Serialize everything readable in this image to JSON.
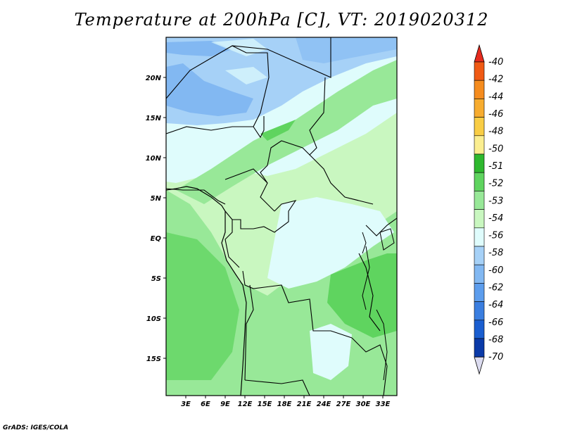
{
  "title": "Temperature at 200hPa [C], VT: 2019020312",
  "credit": "GrADS: IGES/COLA",
  "map": {
    "lat_labels": [
      "20N",
      "15N",
      "10N",
      "5N",
      "EQ",
      "5S",
      "10S",
      "15S"
    ],
    "lon_labels": [
      "3E",
      "6E",
      "9E",
      "12E",
      "15E",
      "18E",
      "21E",
      "24E",
      "27E",
      "30E",
      "33E"
    ]
  },
  "colorbar": {
    "labels": [
      "-40",
      "-42",
      "-44",
      "-46",
      "-48",
      "-50",
      "-51",
      "-52",
      "-53",
      "-54",
      "-56",
      "-58",
      "-60",
      "-62",
      "-64",
      "-66",
      "-68",
      "-70"
    ],
    "colors": [
      "#e62b1e",
      "#f05a14",
      "#f58c1e",
      "#f7ac2f",
      "#f9cd45",
      "#fbee90",
      "#2eb82e",
      "#5fd45f",
      "#98e898",
      "#c9f7c0",
      "#dffcfc",
      "#a6d1f7",
      "#82b8f2",
      "#5c9ded",
      "#3a7ee0",
      "#1a5ed0",
      "#0a3aa8",
      "#00127a"
    ]
  }
}
